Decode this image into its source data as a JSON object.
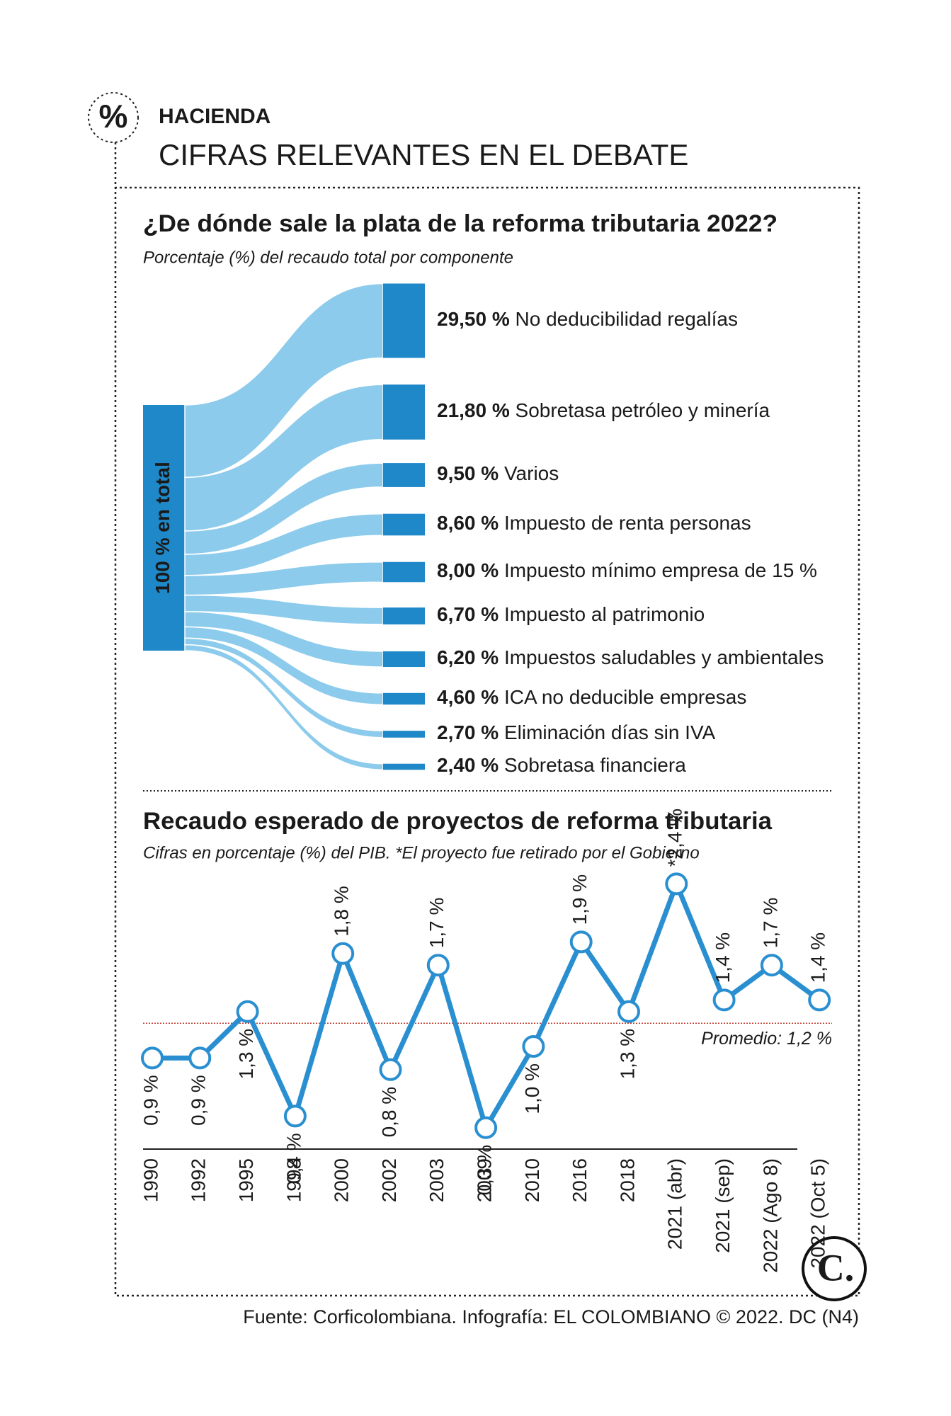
{
  "header": {
    "icon": "%",
    "kicker": "HACIENDA",
    "title": "CIFRAS RELEVANTES EN EL DEBATE"
  },
  "chart_data": [
    {
      "type": "sankey",
      "title": "¿De dónde sale la plata de la reforma tributaria 2022?",
      "subtitle": "Porcentaje (%) del recaudo total por componente",
      "source_label": "100 % en total",
      "categories": [
        "No deducibilidad regalías",
        "Sobretasa petróleo y minería",
        "Varios",
        "Impuesto de renta personas",
        "Impuesto mínimo empresa de 15 %",
        "Impuesto al patrimonio",
        "Impuestos saludables y ambientales",
        "ICA no deducible empresas",
        "Eliminación días sin IVA",
        "Sobretasa financiera"
      ],
      "values": [
        29.5,
        21.8,
        9.5,
        8.6,
        8.0,
        6.7,
        6.2,
        4.6,
        2.7,
        2.4
      ],
      "value_labels": [
        "29,50 %",
        "21,80 %",
        "9,50 %",
        "8,60 %",
        "8,00 %",
        "6,70 %",
        "6,20 %",
        "4,60 %",
        "2,70 %",
        "2,40 %"
      ],
      "color": "#1e88c8",
      "flow_color": "#8ccbec"
    },
    {
      "type": "line",
      "title": "Recaudo esperado de proyectos de reforma tributaria",
      "subtitle": "Cifras en porcentaje (%) del PIB.  *El proyecto fue retirado por el Gobierno",
      "categories": [
        "1990",
        "1992",
        "1995",
        "1998",
        "2000",
        "2002",
        "2003",
        "2009",
        "2010",
        "2016",
        "2018",
        "2021 (abr)",
        "2021 (sep)",
        "2022 (Ago 8)",
        "2022 (Oct 5)"
      ],
      "values": [
        0.9,
        0.9,
        1.3,
        0.4,
        1.8,
        0.8,
        1.7,
        0.3,
        1.0,
        1.9,
        1.3,
        2.4,
        1.4,
        1.7,
        1.4
      ],
      "value_labels": [
        "0,9 %",
        "0,9 %",
        "1,3 %",
        "0,4 %",
        "1,8 %",
        "0,8 %",
        "1,7 %",
        "0,3 %",
        "1,0 %",
        "1,9 %",
        "1,3 %",
        "*2,4 %",
        "1,4 %",
        "1,7 %",
        "1,4 %"
      ],
      "color": "#2a8fd0",
      "average": 1.2,
      "average_label": "Promedio: 1,2 %",
      "average_color": "#c0392b"
    }
  ],
  "logo": "C.",
  "footer": "Fuente: Corficolombiana. Infografía: EL COLOMBIANO © 2022. DC (N4)"
}
